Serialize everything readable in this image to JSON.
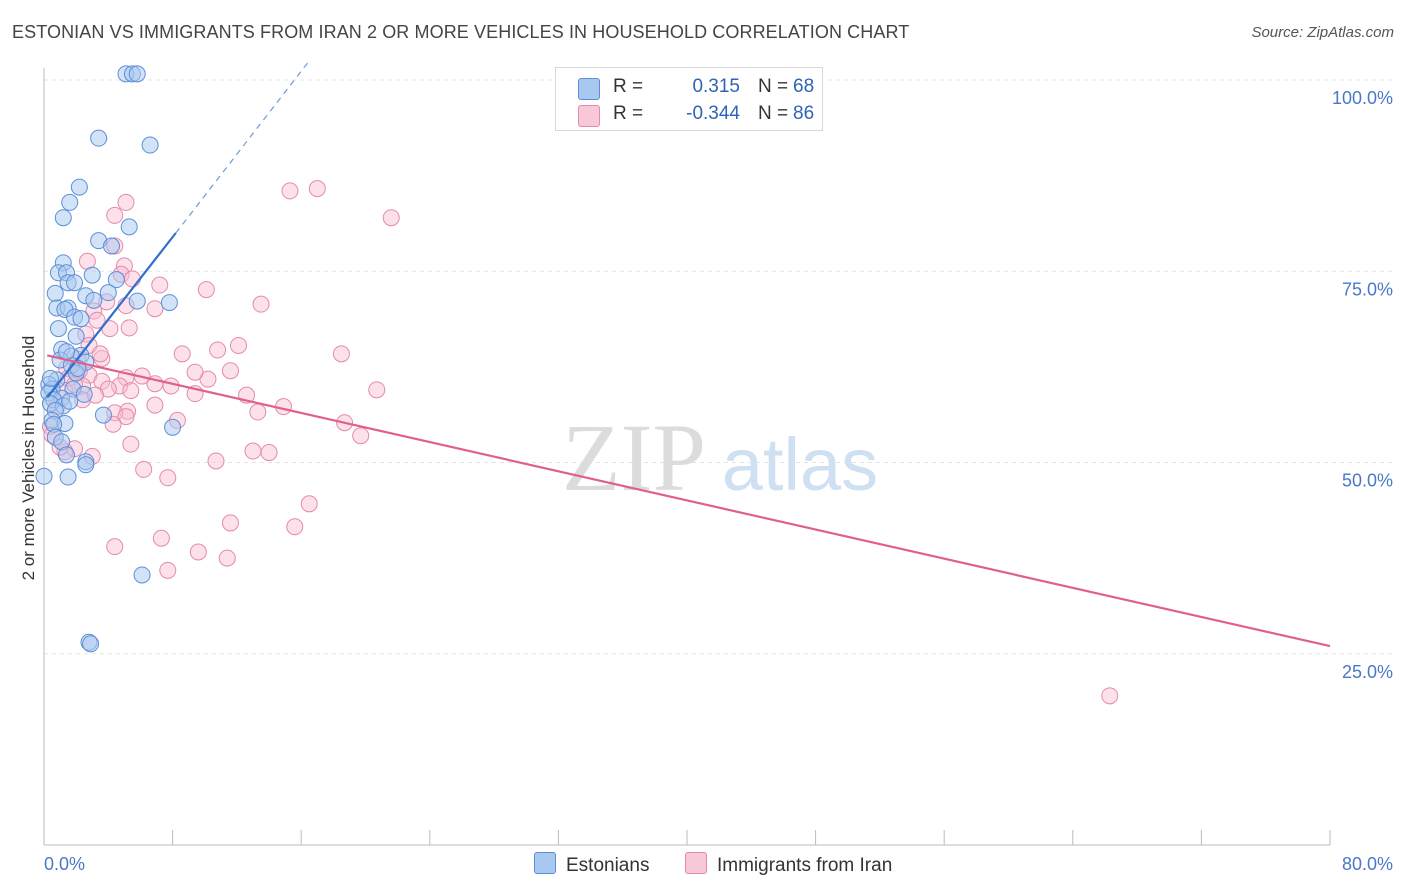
{
  "title": "ESTONIAN VS IMMIGRANTS FROM IRAN 2 OR MORE VEHICLES IN HOUSEHOLD CORRELATION CHART",
  "source": "Source: ZipAtlas.com",
  "watermark": {
    "zip": "ZIP",
    "atlas": "atlas"
  },
  "colors": {
    "blue_fill": "#a8c8f0",
    "blue_stroke": "#5b8fd9",
    "blue_line": "#2f6fd0",
    "pink_fill": "#f8bcd0",
    "pink_stroke": "#e48aaa",
    "pink_line": "#e0608a",
    "grid": "#e3e3e3",
    "axis_text": "#4a78c8"
  },
  "legend": {
    "rows": [
      {
        "r_label": "R =",
        "r_value": "0.315",
        "n_label": "N =",
        "n_value": "68"
      },
      {
        "r_label": "R =",
        "r_value": "-0.344",
        "n_label": "N =",
        "n_value": "86"
      }
    ],
    "series": [
      "Estonians",
      "Immigrants from Iran"
    ]
  },
  "chart_data": {
    "type": "scatter",
    "title": "ESTONIAN VS IMMIGRANTS FROM IRAN 2 OR MORE VEHICLES IN HOUSEHOLD CORRELATION CHART",
    "ylabel": "2 or more Vehicles in Household",
    "xlabel": "",
    "xlim": [
      0,
      80
    ],
    "ylim": [
      0,
      105
    ],
    "x_tick_labels": [
      {
        "value": 0,
        "label": "0.0%"
      },
      {
        "value": 80,
        "label": "80.0%"
      }
    ],
    "y_tick_labels": [
      {
        "value": 100,
        "label": "100.0%"
      },
      {
        "value": 75,
        "label": "75.0%"
      },
      {
        "value": 50,
        "label": "50.0%"
      },
      {
        "value": 25,
        "label": "25.0%"
      }
    ],
    "x_minor_ticks": [
      0,
      8,
      16,
      24,
      32,
      40,
      48,
      56,
      64,
      72,
      80
    ],
    "series": [
      {
        "name": "Estonians",
        "color": "blue",
        "r": 0.315,
        "n": 68,
        "trend": {
          "x0": 0.2,
          "y0": 58.5,
          "x1": 8.2,
          "y1": 80.0,
          "dash_x1": 16.5,
          "dash_y1": 102.5
        },
        "points": [
          [
            5.1,
            100.8
          ],
          [
            5.5,
            100.8
          ],
          [
            5.8,
            100.8
          ],
          [
            3.4,
            92.4
          ],
          [
            6.6,
            91.5
          ],
          [
            2.2,
            86.0
          ],
          [
            1.6,
            84.0
          ],
          [
            1.2,
            82.0
          ],
          [
            5.3,
            80.8
          ],
          [
            3.4,
            79.0
          ],
          [
            4.2,
            78.3
          ],
          [
            1.2,
            76.1
          ],
          [
            0.9,
            74.8
          ],
          [
            1.4,
            74.8
          ],
          [
            3.0,
            74.5
          ],
          [
            4.5,
            73.9
          ],
          [
            1.5,
            73.5
          ],
          [
            1.9,
            73.5
          ],
          [
            4.0,
            72.2
          ],
          [
            0.7,
            72.1
          ],
          [
            2.6,
            71.8
          ],
          [
            3.1,
            71.2
          ],
          [
            5.8,
            71.1
          ],
          [
            7.8,
            70.9
          ],
          [
            0.8,
            70.2
          ],
          [
            1.5,
            70.2
          ],
          [
            1.3,
            70.0
          ],
          [
            1.9,
            69.0
          ],
          [
            2.3,
            68.8
          ],
          [
            0.9,
            67.5
          ],
          [
            2.0,
            66.5
          ],
          [
            1.1,
            64.8
          ],
          [
            2.3,
            64.0
          ],
          [
            1.7,
            63.9
          ],
          [
            1.0,
            63.4
          ],
          [
            2.6,
            63.1
          ],
          [
            1.7,
            62.7
          ],
          [
            2.0,
            61.7
          ],
          [
            0.8,
            60.8
          ],
          [
            0.3,
            60.2
          ],
          [
            0.5,
            59.6
          ],
          [
            1.8,
            59.6
          ],
          [
            0.3,
            59.1
          ],
          [
            2.5,
            58.9
          ],
          [
            1.1,
            58.4
          ],
          [
            0.6,
            58.2
          ],
          [
            0.4,
            57.7
          ],
          [
            1.2,
            57.4
          ],
          [
            0.7,
            56.8
          ],
          [
            3.7,
            56.2
          ],
          [
            0.5,
            55.5
          ],
          [
            1.3,
            55.1
          ],
          [
            0.6,
            55.0
          ],
          [
            8.0,
            54.6
          ],
          [
            0.7,
            53.3
          ],
          [
            1.1,
            52.7
          ],
          [
            1.4,
            51.0
          ],
          [
            2.6,
            50.1
          ],
          [
            2.6,
            49.7
          ],
          [
            0.0,
            48.2
          ],
          [
            1.5,
            48.1
          ],
          [
            6.1,
            35.3
          ],
          [
            2.8,
            26.5
          ],
          [
            2.9,
            26.3
          ],
          [
            1.4,
            64.5
          ],
          [
            2.1,
            62.3
          ],
          [
            0.4,
            61.0
          ],
          [
            1.6,
            58.0
          ]
        ]
      },
      {
        "name": "Immigrants from Iran",
        "color": "pink",
        "r": -0.344,
        "n": 86,
        "trend": {
          "x0": 0.2,
          "y0": 64.0,
          "x1": 80.0,
          "y1": 26.0
        },
        "points": [
          [
            15.3,
            85.5
          ],
          [
            17.0,
            85.8
          ],
          [
            21.6,
            82.0
          ],
          [
            5.1,
            84.0
          ],
          [
            4.4,
            82.3
          ],
          [
            4.4,
            78.3
          ],
          [
            2.7,
            76.3
          ],
          [
            5.0,
            75.7
          ],
          [
            4.8,
            74.6
          ],
          [
            5.5,
            74.0
          ],
          [
            7.2,
            73.2
          ],
          [
            10.1,
            72.6
          ],
          [
            3.9,
            71.0
          ],
          [
            5.1,
            70.5
          ],
          [
            6.9,
            70.1
          ],
          [
            13.5,
            70.7
          ],
          [
            3.1,
            69.8
          ],
          [
            3.3,
            68.6
          ],
          [
            5.3,
            67.6
          ],
          [
            4.1,
            67.5
          ],
          [
            2.6,
            66.8
          ],
          [
            2.8,
            65.3
          ],
          [
            10.8,
            64.7
          ],
          [
            18.5,
            64.2
          ],
          [
            8.6,
            64.2
          ],
          [
            3.6,
            63.6
          ],
          [
            2.1,
            63.5
          ],
          [
            1.4,
            62.3
          ],
          [
            2.0,
            62.1
          ],
          [
            2.8,
            61.4
          ],
          [
            1.5,
            61.0
          ],
          [
            5.1,
            61.1
          ],
          [
            10.2,
            60.9
          ],
          [
            3.6,
            60.6
          ],
          [
            6.9,
            60.3
          ],
          [
            2.4,
            60.0
          ],
          [
            4.7,
            60.0
          ],
          [
            20.7,
            59.5
          ],
          [
            5.4,
            59.4
          ],
          [
            1.3,
            59.4
          ],
          [
            9.4,
            59.0
          ],
          [
            12.6,
            58.8
          ],
          [
            2.4,
            58.2
          ],
          [
            6.9,
            57.5
          ],
          [
            14.9,
            57.3
          ],
          [
            0.8,
            57.3
          ],
          [
            5.2,
            56.7
          ],
          [
            4.4,
            56.5
          ],
          [
            13.3,
            56.6
          ],
          [
            5.1,
            56.0
          ],
          [
            8.3,
            55.5
          ],
          [
            18.7,
            55.2
          ],
          [
            4.3,
            55.0
          ],
          [
            0.4,
            54.7
          ],
          [
            19.7,
            53.5
          ],
          [
            5.4,
            52.4
          ],
          [
            1.9,
            51.8
          ],
          [
            13.0,
            51.5
          ],
          [
            1.3,
            51.4
          ],
          [
            14.0,
            51.3
          ],
          [
            3.0,
            50.8
          ],
          [
            10.7,
            50.2
          ],
          [
            6.2,
            49.1
          ],
          [
            7.7,
            48.0
          ],
          [
            16.5,
            44.6
          ],
          [
            11.6,
            42.1
          ],
          [
            15.6,
            41.6
          ],
          [
            7.3,
            40.1
          ],
          [
            4.4,
            39.0
          ],
          [
            9.6,
            38.3
          ],
          [
            11.4,
            37.5
          ],
          [
            7.7,
            35.9
          ],
          [
            0.5,
            53.6
          ],
          [
            1.0,
            52.0
          ],
          [
            3.5,
            64.2
          ],
          [
            2.2,
            62.0
          ],
          [
            6.1,
            61.3
          ],
          [
            4.0,
            59.6
          ],
          [
            3.2,
            58.8
          ],
          [
            0.6,
            58.2
          ],
          [
            9.4,
            61.8
          ],
          [
            12.1,
            65.3
          ],
          [
            11.6,
            62.0
          ],
          [
            7.9,
            60.0
          ],
          [
            66.3,
            19.5
          ],
          [
            1.9,
            60.2
          ]
        ]
      }
    ]
  }
}
